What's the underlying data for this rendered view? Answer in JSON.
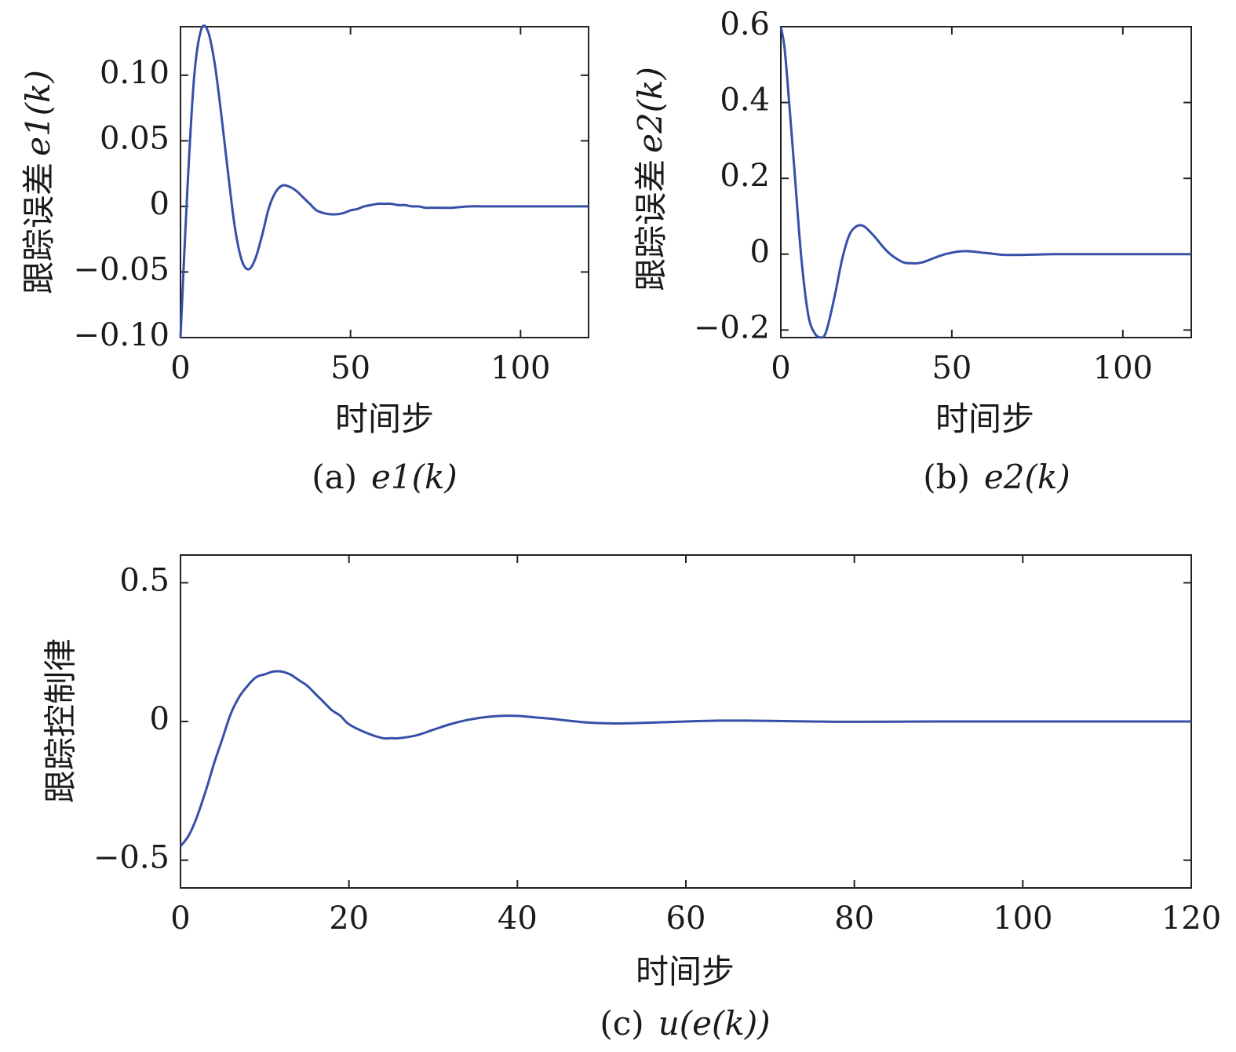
{
  "chart_data": [
    {
      "type": "line",
      "caption_prefix": "(a)",
      "caption_math": "e1(k)",
      "ylabel_text": "跟踪误差",
      "ylabel_math": "e1(k)",
      "xlabel": "时间步",
      "xlim": [
        0,
        120
      ],
      "ylim": [
        -0.1,
        0.137
      ],
      "xticks": [
        0,
        50,
        100
      ],
      "xticklabels": [
        "0",
        "50",
        "100"
      ],
      "yticks": [
        -0.1,
        -0.05,
        0,
        0.05,
        0.1
      ],
      "yticklabels": [
        "−0.10",
        "−0.05",
        "0",
        "0.05",
        "0.10"
      ],
      "grid": false,
      "color": "#3650a8",
      "series": [
        {
          "x": [
            0,
            2,
            4,
            6,
            8,
            10,
            12,
            14,
            16,
            18,
            20,
            22,
            24,
            26,
            28,
            30,
            32,
            34,
            36,
            38,
            40,
            42,
            44,
            46,
            48,
            50,
            52,
            54,
            56,
            58,
            60,
            62,
            64,
            66,
            68,
            70,
            72,
            74,
            76,
            80,
            85,
            90,
            95,
            100,
            110,
            120
          ],
          "y": [
            -0.1,
            0.012,
            0.098,
            0.134,
            0.134,
            0.11,
            0.07,
            0.025,
            -0.016,
            -0.041,
            -0.048,
            -0.04,
            -0.022,
            -0.001,
            0.011,
            0.016,
            0.015,
            0.012,
            0.007,
            0.002,
            -0.003,
            -0.005,
            -0.006,
            -0.006,
            -0.005,
            -0.003,
            -0.002,
            0.0,
            0.001,
            0.002,
            0.002,
            0.002,
            0.001,
            0.001,
            0.0,
            0.0,
            -0.001,
            -0.001,
            -0.001,
            -0.001,
            0.0,
            0.0,
            0.0,
            0.0,
            0.0,
            0.0
          ]
        }
      ]
    },
    {
      "type": "line",
      "caption_prefix": "(b)",
      "caption_math": "e2(k)",
      "ylabel_text": "跟踪误差",
      "ylabel_math": "e2(k)",
      "xlabel": "时间步",
      "xlim": [
        0,
        120
      ],
      "ylim": [
        -0.22,
        0.6
      ],
      "xticks": [
        0,
        50,
        100
      ],
      "xticklabels": [
        "0",
        "50",
        "100"
      ],
      "yticks": [
        -0.2,
        0,
        0.2,
        0.4,
        0.6
      ],
      "yticklabels": [
        "−0.2",
        "0",
        "0.2",
        "0.4",
        "0.6"
      ],
      "grid": false,
      "color": "#3650a8",
      "series": [
        {
          "x": [
            0,
            1,
            2,
            4,
            6,
            8,
            10,
            12,
            13,
            14,
            16,
            18,
            20,
            22,
            24,
            26,
            28,
            30,
            32,
            34,
            36,
            38,
            40,
            42,
            44,
            46,
            48,
            50,
            52,
            54,
            56,
            58,
            60,
            62,
            64,
            66,
            70,
            75,
            80,
            90,
            100,
            110,
            120
          ],
          "y": [
            0.6,
            0.55,
            0.45,
            0.22,
            -0.01,
            -0.16,
            -0.21,
            -0.22,
            -0.21,
            -0.18,
            -0.1,
            -0.01,
            0.05,
            0.073,
            0.075,
            0.06,
            0.04,
            0.018,
            0.0,
            -0.013,
            -0.022,
            -0.024,
            -0.024,
            -0.02,
            -0.013,
            -0.006,
            0.0,
            0.004,
            0.007,
            0.008,
            0.007,
            0.005,
            0.003,
            0.001,
            -0.001,
            -0.002,
            -0.002,
            -0.001,
            0.0,
            0.0,
            0.0,
            0.0,
            0.0
          ]
        }
      ]
    },
    {
      "type": "line",
      "caption_prefix": "(c)",
      "caption_math": "u(e(k))",
      "ylabel_text": "跟踪控制律",
      "xlabel": "时间步",
      "xlim": [
        0,
        120
      ],
      "ylim": [
        -0.6,
        0.6
      ],
      "xticks": [
        0,
        20,
        40,
        60,
        80,
        100,
        120
      ],
      "xticklabels": [
        "0",
        "20",
        "40",
        "60",
        "80",
        "100",
        "120"
      ],
      "yticks": [
        -0.5,
        0,
        0.5
      ],
      "yticklabels": [
        "−0.5",
        "0",
        "0.5"
      ],
      "grid": false,
      "color": "#3650a8",
      "series": [
        {
          "x": [
            0,
            1,
            2,
            3,
            4,
            5,
            6,
            7,
            8,
            9,
            10,
            11,
            12,
            13,
            14,
            15,
            16,
            17,
            18,
            19,
            20,
            22,
            24,
            25,
            26,
            28,
            30,
            32,
            34,
            36,
            38,
            40,
            42,
            44,
            46,
            48,
            50,
            52,
            55,
            58,
            61,
            64,
            67,
            70,
            75,
            80,
            90,
            100,
            110,
            120
          ],
          "y": [
            -0.45,
            -0.41,
            -0.34,
            -0.25,
            -0.15,
            -0.06,
            0.03,
            0.09,
            0.13,
            0.16,
            0.17,
            0.18,
            0.18,
            0.17,
            0.15,
            0.13,
            0.1,
            0.07,
            0.04,
            0.02,
            -0.01,
            -0.04,
            -0.06,
            -0.06,
            -0.06,
            -0.05,
            -0.03,
            -0.01,
            0.005,
            0.015,
            0.02,
            0.02,
            0.015,
            0.01,
            0.003,
            -0.003,
            -0.006,
            -0.007,
            -0.005,
            -0.002,
            0.001,
            0.003,
            0.003,
            0.002,
            0.0,
            -0.001,
            0.0,
            0.0,
            0.0,
            0.0
          ]
        }
      ]
    }
  ]
}
